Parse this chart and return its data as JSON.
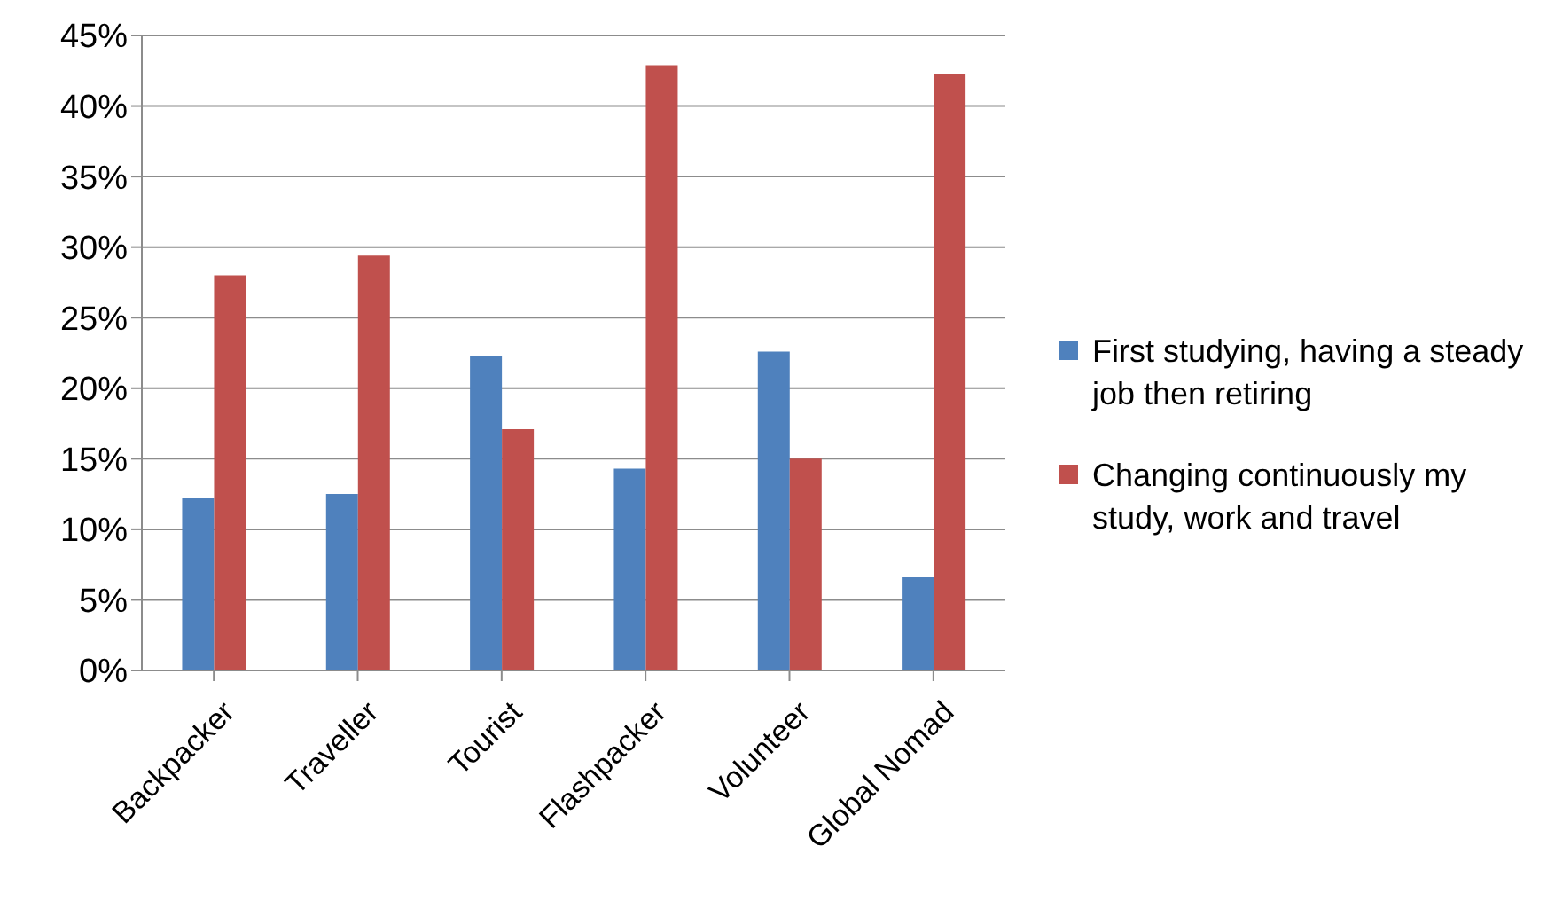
{
  "chart_data": {
    "type": "bar",
    "categories": [
      "Backpacker",
      "Traveller",
      "Tourist",
      "Flashpacker",
      "Volunteer",
      "Global Nomad"
    ],
    "series": [
      {
        "name": "First studying, having a steady job then retiring",
        "color": "#4f81bd",
        "values": [
          12.2,
          12.5,
          22.3,
          14.3,
          22.6,
          6.6
        ]
      },
      {
        "name": "Changing continuously my study, work and travel",
        "color": "#c0504d",
        "values": [
          28.0,
          29.4,
          17.1,
          42.9,
          15.0,
          42.3
        ]
      }
    ],
    "ylim": [
      0,
      45
    ],
    "yticks": [
      {
        "value": 0,
        "label": "0%"
      },
      {
        "value": 5,
        "label": "5%"
      },
      {
        "value": 10,
        "label": "10%"
      },
      {
        "value": 15,
        "label": "15%"
      },
      {
        "value": 20,
        "label": "20%"
      },
      {
        "value": 25,
        "label": "25%"
      },
      {
        "value": 30,
        "label": "30%"
      },
      {
        "value": 35,
        "label": "35%"
      },
      {
        "value": 40,
        "label": "40%"
      },
      {
        "value": 45,
        "label": "45%"
      }
    ],
    "grid": "y",
    "legend": "right"
  }
}
